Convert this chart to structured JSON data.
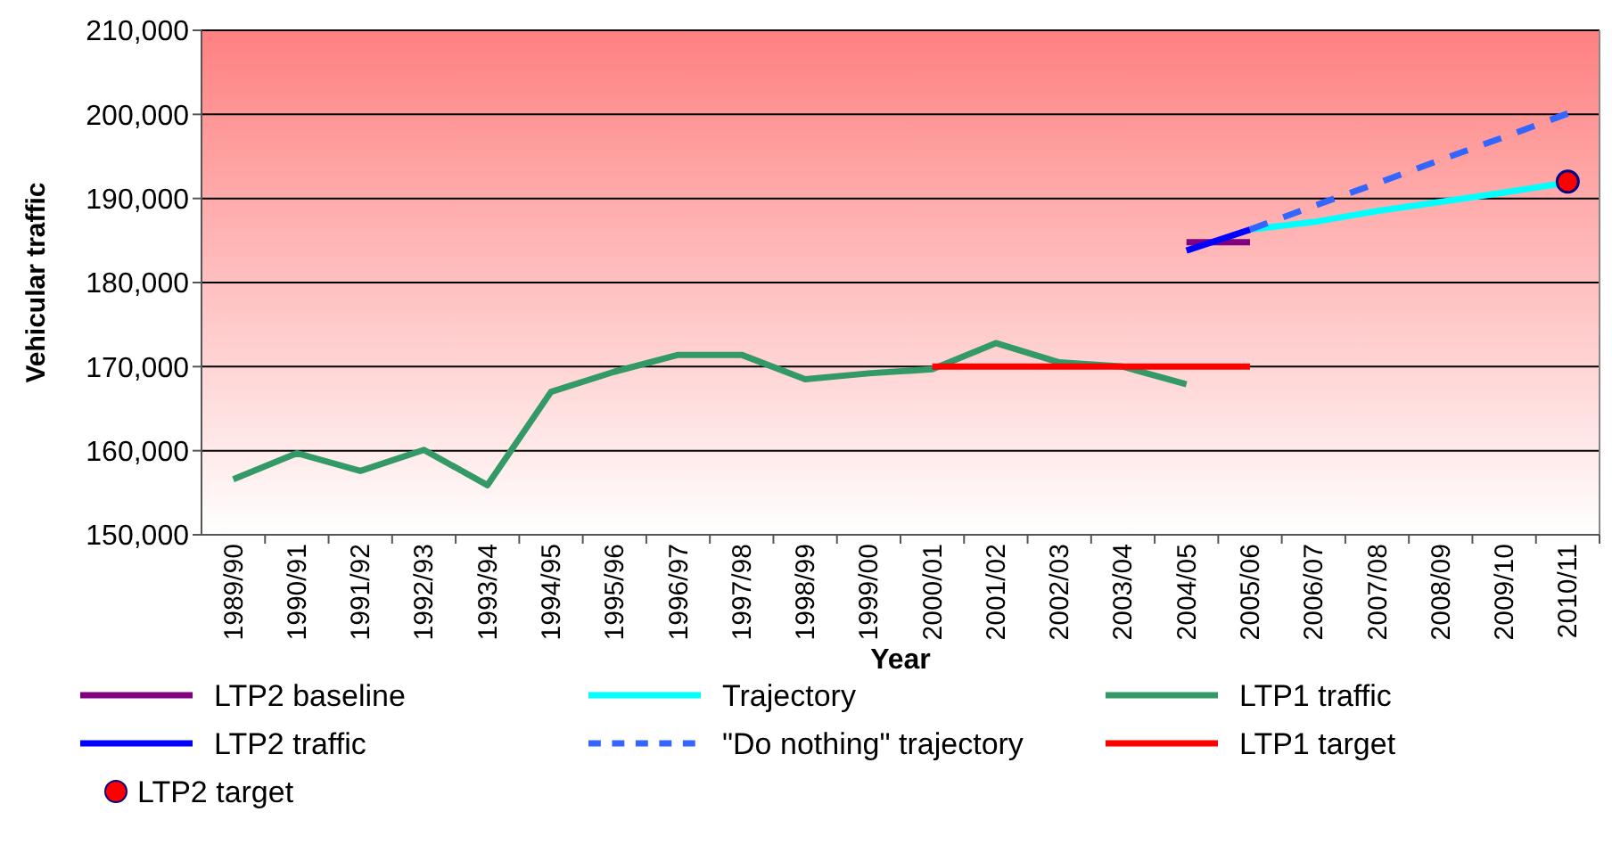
{
  "chart_data": {
    "type": "line",
    "xlabel": "Year",
    "ylabel": "Vehicular traffic",
    "categories": [
      "1989/90",
      "1990/91",
      "1991/92",
      "1992/93",
      "1993/94",
      "1994/95",
      "1995/96",
      "1996/97",
      "1997/98",
      "1998/99",
      "1999/00",
      "2000/01",
      "2001/02",
      "2002/03",
      "2003/04",
      "2004/05",
      "2005/06",
      "2006/07",
      "2007/08",
      "2008/09",
      "2009/10",
      "2010/11"
    ],
    "ylim": [
      150000,
      210000
    ],
    "yticks": [
      {
        "value": 150000,
        "label": "150,000"
      },
      {
        "value": 160000,
        "label": "160,000"
      },
      {
        "value": 170000,
        "label": "170,000"
      },
      {
        "value": 180000,
        "label": "180,000"
      },
      {
        "value": 190000,
        "label": "190,000"
      },
      {
        "value": 200000,
        "label": "200,000"
      },
      {
        "value": 210000,
        "label": "210,000"
      }
    ],
    "grid": "y",
    "legend": "bottom",
    "marker": "none",
    "line_style": "solid",
    "series": [
      {
        "name": "LTP2 baseline",
        "color": "#800080",
        "values": [
          null,
          null,
          null,
          null,
          null,
          null,
          null,
          null,
          null,
          null,
          null,
          null,
          null,
          null,
          null,
          184800,
          184800,
          null,
          null,
          null,
          null,
          null
        ]
      },
      {
        "name": "Trajectory",
        "color": "#00ffff",
        "values": [
          null,
          null,
          null,
          null,
          null,
          null,
          null,
          null,
          null,
          null,
          null,
          null,
          null,
          null,
          null,
          null,
          186300,
          187200,
          188500,
          189600,
          190700,
          191900
        ]
      },
      {
        "name": "LTP1 traffic",
        "color": "#339966",
        "values": [
          156600,
          159700,
          157600,
          160100,
          155900,
          167000,
          169400,
          171400,
          171400,
          168500,
          169200,
          169700,
          172800,
          170500,
          170000,
          167900,
          null,
          null,
          null,
          null,
          null,
          null
        ]
      },
      {
        "name": "LTP2 traffic",
        "color": "#0000ff",
        "values": [
          null,
          null,
          null,
          null,
          null,
          null,
          null,
          null,
          null,
          null,
          null,
          null,
          null,
          null,
          null,
          183800,
          186300,
          null,
          null,
          null,
          null,
          null
        ]
      },
      {
        "name": "\"Do nothing\" trajectory",
        "color": "#3366ff",
        "line_style": "dashed",
        "values": [
          null,
          null,
          null,
          null,
          null,
          null,
          null,
          null,
          null,
          null,
          null,
          null,
          null,
          null,
          null,
          null,
          186300,
          189100,
          191800,
          194600,
          197300,
          200100
        ]
      },
      {
        "name": "LTP1 target",
        "color": "#ff0000",
        "values": [
          null,
          null,
          null,
          null,
          null,
          null,
          null,
          null,
          null,
          null,
          null,
          170000,
          170000,
          170000,
          170000,
          170000,
          170000,
          null,
          null,
          null,
          null,
          null
        ]
      },
      {
        "name": "LTP2 target",
        "type": "scatter",
        "marker": "circle",
        "color": "#ff0000",
        "values": [
          null,
          null,
          null,
          null,
          null,
          null,
          null,
          null,
          null,
          null,
          null,
          null,
          null,
          null,
          null,
          null,
          null,
          null,
          null,
          null,
          null,
          192000
        ]
      }
    ]
  }
}
